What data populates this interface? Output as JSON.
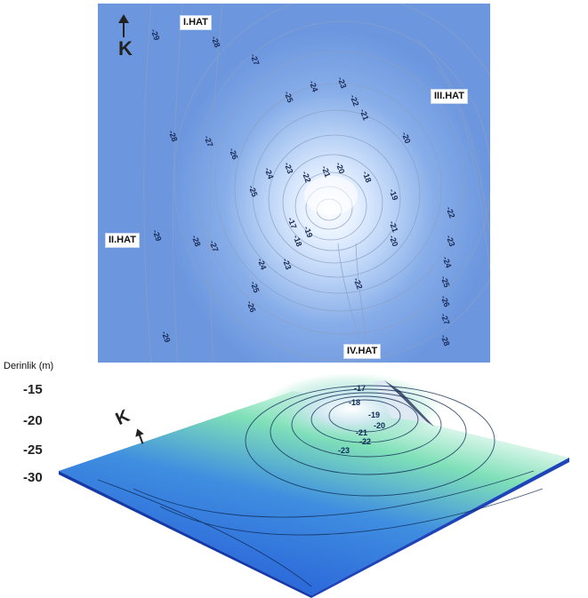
{
  "map": {
    "north_label": "K",
    "lines": {
      "line_1": "I.HAT",
      "line_2": "II.HAT",
      "line_3": "III.HAT",
      "line_4": "IV.HAT"
    },
    "contour_labels": [
      "-29",
      "-28",
      "-27",
      "-25",
      "-24",
      "-23",
      "-22",
      "-21",
      "-20",
      "-19",
      "-18",
      "-28",
      "-27",
      "-26",
      "-25",
      "-24",
      "-23",
      "-22",
      "-21",
      "-20",
      "-19",
      "-18",
      "-17",
      "-29",
      "-28",
      "-27",
      "-26",
      "-25",
      "-24",
      "-23",
      "-22",
      "-21",
      "-20",
      "-22",
      "-23",
      "-24",
      "-25",
      "-26",
      "-27",
      "-28",
      "-29"
    ],
    "colors": {
      "deep": "#6c97df",
      "shallow": "#ffffff",
      "contour": "#8aa0c4"
    }
  },
  "surface3d": {
    "north_label": "K",
    "depth_axis_title": "Derinlik (m)",
    "depth_ticks": [
      "-15",
      "-20",
      "-25",
      "-30"
    ],
    "peak_labels": [
      "-17",
      "-18",
      "-19",
      "-20",
      "-21",
      "-22",
      "-23"
    ],
    "colors": {
      "deep": "#1f4fd6",
      "mid": "#3f8ee0",
      "shallow": "#7fe0b8",
      "peak": "#ffffff"
    }
  }
}
